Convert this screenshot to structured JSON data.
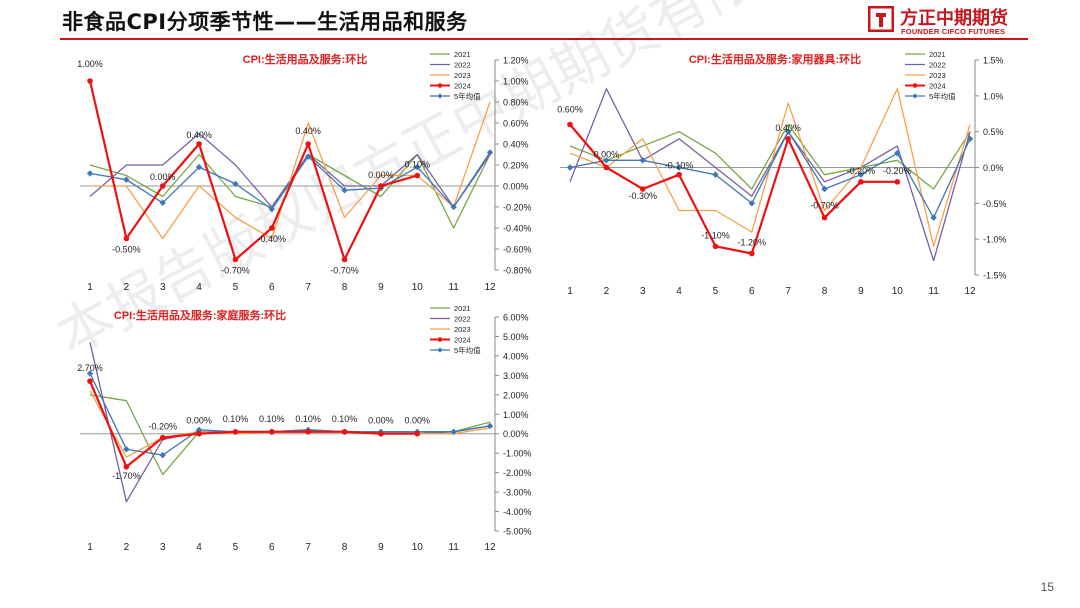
{
  "header": {
    "title": "非食品CPI分项季节性——生活用品和服务",
    "logo_cn": "方正中期期货",
    "logo_en": "FOUNDER CIFCO FUTURES",
    "brand_color": "#c8161d"
  },
  "watermark": "本报告版权归方正中期期货有限公司所有",
  "page_number": "15",
  "series_colors": {
    "2021": "#77a844",
    "2022": "#7b5fa6",
    "2023": "#f6a14a",
    "2024": "#ee1111",
    "5年均值": "#3f77b6"
  },
  "chart_data": [
    {
      "type": "line",
      "title": "CPI:生活用品及服务:环比",
      "categories": [
        "1",
        "2",
        "3",
        "4",
        "5",
        "6",
        "7",
        "8",
        "9",
        "10",
        "11",
        "12"
      ],
      "ylim": [
        -0.8,
        1.2
      ],
      "yticks": [
        "1.20%",
        "1.00%",
        "0.80%",
        "0.60%",
        "0.40%",
        "0.20%",
        "0.00%",
        "-0.20%",
        "-0.40%",
        "-0.60%",
        "-0.80%"
      ],
      "legend": "top-right",
      "series": [
        {
          "name": "2021",
          "values": [
            0.2,
            0.1,
            -0.1,
            0.3,
            -0.1,
            -0.2,
            0.3,
            0.1,
            -0.1,
            0.3,
            -0.4,
            0.3
          ]
        },
        {
          "name": "2022",
          "values": [
            -0.1,
            0.2,
            0.2,
            0.5,
            0.2,
            -0.2,
            0.3,
            0.0,
            0.0,
            0.3,
            -0.2,
            0.3
          ]
        },
        {
          "name": "2023",
          "values": [
            0.0,
            0.0,
            -0.5,
            0.0,
            -0.3,
            -0.5,
            0.6,
            -0.3,
            0.1,
            0.1,
            -0.2,
            0.8
          ]
        },
        {
          "name": "2024",
          "values": [
            1.0,
            -0.5,
            0.0,
            0.4,
            -0.7,
            -0.4,
            0.4,
            -0.7,
            0.0,
            0.1,
            null,
            null
          ]
        },
        {
          "name": "5年均值",
          "values": [
            0.12,
            0.06,
            -0.16,
            0.18,
            0.02,
            -0.22,
            0.28,
            -0.04,
            -0.02,
            0.18,
            -0.2,
            0.32
          ]
        }
      ],
      "data_labels": [
        "1.00%",
        "-0.50%",
        "0.00%",
        "0.40%",
        "-0.70%",
        "-0.40%",
        "0.40%",
        "-0.70%",
        "0.00%",
        "0.10%"
      ]
    },
    {
      "type": "line",
      "title": "CPI:生活用品及服务:家用器具:环比",
      "categories": [
        "1",
        "2",
        "3",
        "4",
        "5",
        "6",
        "7",
        "8",
        "9",
        "10",
        "11",
        "12"
      ],
      "ylim": [
        -1.5,
        1.5
      ],
      "yticks": [
        "1.5%",
        "1.0%",
        "0.5%",
        "0.0%",
        "-0.5%",
        "-1.0%",
        "-1.5%"
      ],
      "legend": "top-right",
      "series": [
        {
          "name": "2021",
          "values": [
            0.3,
            0.1,
            0.3,
            0.5,
            0.2,
            -0.3,
            0.6,
            -0.1,
            0.0,
            0.1,
            -0.3,
            0.5
          ]
        },
        {
          "name": "2022",
          "values": [
            -0.2,
            1.1,
            0.1,
            0.4,
            0.0,
            -0.4,
            0.5,
            -0.2,
            0.0,
            0.3,
            -1.3,
            0.5
          ]
        },
        {
          "name": "2023",
          "values": [
            0.2,
            0.0,
            0.4,
            -0.6,
            -0.6,
            -0.9,
            0.9,
            -0.6,
            0.0,
            1.1,
            -1.1,
            0.6
          ]
        },
        {
          "name": "2024",
          "values": [
            0.6,
            0.0,
            -0.3,
            -0.1,
            -1.1,
            -1.2,
            0.4,
            -0.7,
            -0.2,
            -0.2,
            null,
            null
          ]
        },
        {
          "name": "5年均值",
          "values": [
            0.0,
            0.1,
            0.1,
            0.0,
            -0.1,
            -0.5,
            0.5,
            -0.3,
            -0.1,
            0.2,
            -0.7,
            0.4
          ]
        }
      ],
      "data_labels": [
        "0.60%",
        "0.00%",
        "-0.30%",
        "-0.10%",
        "-1.10%",
        "-1.20%",
        "0.40%",
        "-0.70%",
        "-0.20%",
        "-0.20%"
      ]
    },
    {
      "type": "line",
      "title": "CPI:生活用品及服务:家庭服务:环比",
      "categories": [
        "1",
        "2",
        "3",
        "4",
        "5",
        "6",
        "7",
        "8",
        "9",
        "10",
        "11",
        "12"
      ],
      "ylim": [
        -5.0,
        6.0
      ],
      "yticks": [
        "6.00%",
        "5.00%",
        "4.00%",
        "3.00%",
        "2.00%",
        "1.00%",
        "0.00%",
        "-1.00%",
        "-2.00%",
        "-3.00%",
        "-4.00%",
        "-5.00%"
      ],
      "legend": "top-right",
      "series": [
        {
          "name": "2021",
          "values": [
            2.0,
            1.7,
            -2.1,
            0.1,
            0.0,
            0.1,
            0.2,
            0.1,
            0.1,
            0.1,
            0.1,
            0.6
          ]
        },
        {
          "name": "2022",
          "values": [
            4.7,
            -3.5,
            -0.3,
            0.1,
            0.1,
            0.1,
            0.2,
            0.1,
            0.0,
            0.0,
            0.1,
            0.4
          ]
        },
        {
          "name": "2023",
          "values": [
            2.2,
            -1.2,
            -0.2,
            0.1,
            0.0,
            0.1,
            0.1,
            0.1,
            0.0,
            0.0,
            0.0,
            0.3
          ]
        },
        {
          "name": "2024",
          "values": [
            2.7,
            -1.7,
            -0.2,
            0.0,
            0.1,
            0.1,
            0.1,
            0.1,
            0.0,
            0.0,
            null,
            null
          ]
        },
        {
          "name": "5年均值",
          "values": [
            3.1,
            -0.8,
            -1.1,
            0.2,
            0.1,
            0.1,
            0.2,
            0.1,
            0.1,
            0.1,
            0.1,
            0.4
          ]
        }
      ],
      "data_labels": [
        "2.70%",
        "-1.70%",
        "-0.20%",
        "0.00%",
        "0.10%",
        "0.10%",
        "0.10%",
        "0.10%",
        "0.00%",
        "0.00%"
      ]
    }
  ]
}
